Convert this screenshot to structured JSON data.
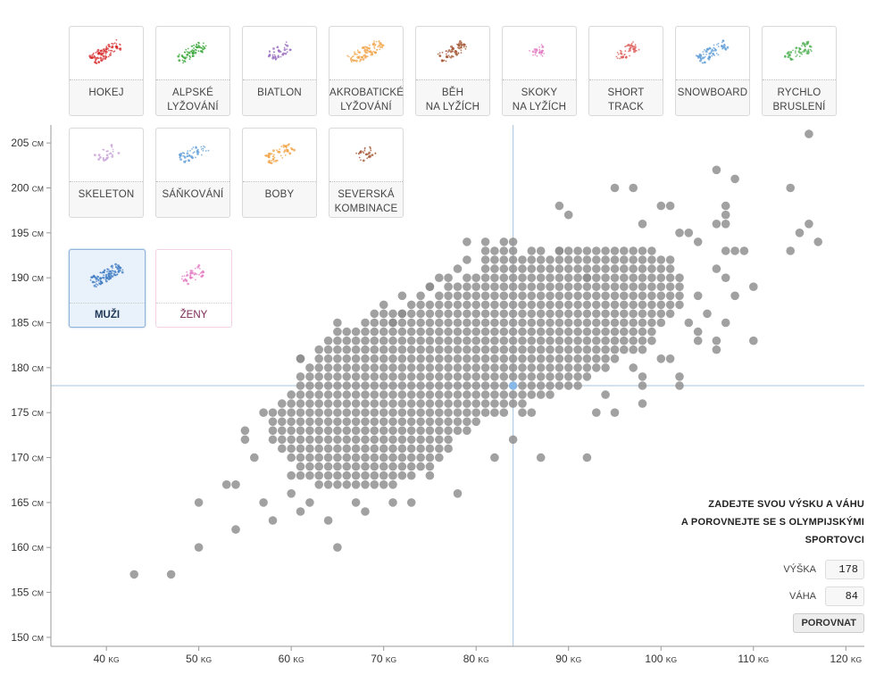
{
  "sports": [
    {
      "id": "hokej",
      "line1": "HOKEJ",
      "line2": "",
      "color": "#d62728"
    },
    {
      "id": "alpske",
      "line1": "ALPSKÉ",
      "line2": "LYŽOVÁNÍ",
      "color": "#2ca02c"
    },
    {
      "id": "biatlon",
      "line1": "BIATLON",
      "line2": "",
      "color": "#9467bd"
    },
    {
      "id": "akrobaticke",
      "line1": "AKROBATICKÉ",
      "line2": "LYŽOVÁNÍ",
      "color": "#f0a040"
    },
    {
      "id": "beh",
      "line1": "BĚH",
      "line2": "NA LYŽÍCH",
      "color": "#a0522d"
    },
    {
      "id": "skoky",
      "line1": "SKOKY",
      "line2": "NA LYŽÍCH",
      "color": "#e377c2"
    },
    {
      "id": "short",
      "line1": "SHORT",
      "line2": "TRACK",
      "color": "#d9534f"
    },
    {
      "id": "snowboard",
      "line1": "SNOWBOARD",
      "line2": "",
      "color": "#5b9bd5"
    },
    {
      "id": "rychlo",
      "line1": "RYCHLO",
      "line2": "BRUSLENÍ",
      "color": "#4caf50"
    },
    {
      "id": "skeleton",
      "line1": "SKELETON",
      "line2": "",
      "color": "#c39bd3"
    },
    {
      "id": "sankovani",
      "line1": "SÁŇKOVÁNÍ",
      "line2": "",
      "color": "#5b9bd5"
    },
    {
      "id": "boby",
      "line1": "BOBY",
      "line2": "",
      "color": "#f0a040"
    },
    {
      "id": "severska",
      "line1": "SEVERSKÁ",
      "line2": "KOMBINACE",
      "color": "#a0522d"
    }
  ],
  "genders": {
    "men": {
      "label": "MUŽI",
      "color": "#3a78c2"
    },
    "women": {
      "label": "ŽENY",
      "color": "#e377c2"
    }
  },
  "compare": {
    "line1": "ZADEJTE SVOU VÝSKU A VÁHU",
    "line2": "A POROVNEJTE SE S OLYMPIJSKÝMI",
    "line3": "SPORTOVCI",
    "height_label": "VÝŠKA",
    "height_value": "178",
    "weight_label": "VÁHA",
    "weight_value": "84",
    "button_label": "POROVNAT"
  },
  "chart_data": {
    "type": "scatter",
    "xlabel": "",
    "ylabel": "",
    "x_unit": "KG",
    "y_unit": "CM",
    "xlim": [
      34,
      122
    ],
    "ylim": [
      149,
      207
    ],
    "x_ticks": [
      40,
      50,
      60,
      70,
      80,
      90,
      100,
      110,
      120
    ],
    "y_ticks": [
      150,
      155,
      160,
      165,
      170,
      175,
      180,
      185,
      190,
      195,
      200,
      205
    ],
    "grid": false,
    "point_color": "#8c8c8c",
    "highlight_color": "#8ab8e6",
    "crosshair_color": "#a9c3de",
    "highlight": {
      "x": 84,
      "y": 178
    },
    "dense_region": {
      "rows": [
        {
          "y": 194,
          "x": [
            81,
            83,
            84
          ]
        },
        {
          "y": 193,
          "x": [
            81,
            82,
            83,
            84,
            86,
            87,
            89,
            90,
            91,
            92,
            93,
            94,
            95,
            96,
            97,
            98,
            99
          ]
        },
        {
          "y": 192,
          "x": [
            79,
            81,
            82,
            83,
            84,
            85,
            86,
            87,
            88,
            89,
            90,
            91,
            92,
            93,
            94,
            95,
            96,
            97,
            98,
            99,
            100,
            101
          ]
        },
        {
          "y": 191,
          "x": [
            78,
            81,
            82,
            83,
            84,
            85,
            86,
            87,
            88,
            89,
            90,
            91,
            92,
            93,
            94,
            95,
            96,
            97,
            98,
            99,
            100,
            101
          ]
        },
        {
          "y": 190,
          "x": [
            76,
            79,
            80,
            81,
            82,
            83,
            84,
            85,
            86,
            87,
            88,
            89,
            90,
            91,
            92,
            93,
            94,
            95,
            96,
            97,
            98,
            99,
            100,
            101,
            102
          ]
        },
        {
          "y": 189,
          "x": [
            75,
            77,
            78,
            79,
            80,
            81,
            82,
            83,
            84,
            85,
            86,
            87,
            88,
            89,
            90,
            91,
            92,
            93,
            94,
            95,
            96,
            97,
            98,
            99,
            100,
            101,
            102
          ]
        },
        {
          "y": 188,
          "x": [
            72,
            74,
            76,
            77,
            78,
            79,
            80,
            81,
            82,
            83,
            84,
            85,
            86,
            87,
            88,
            89,
            90,
            91,
            92,
            93,
            94,
            95,
            96,
            97,
            98,
            99,
            100,
            101,
            102
          ]
        },
        {
          "y": 187,
          "x": [
            70,
            73,
            74,
            75,
            76,
            77,
            78,
            79,
            80,
            81,
            82,
            83,
            84,
            85,
            86,
            87,
            88,
            89,
            90,
            91,
            92,
            93,
            94,
            95,
            96,
            97,
            98,
            99,
            100,
            101,
            102
          ]
        },
        {
          "y": 186,
          "x": [
            69,
            70,
            71,
            72,
            73,
            74,
            75,
            76,
            77,
            78,
            79,
            80,
            81,
            82,
            83,
            84,
            85,
            86,
            87,
            88,
            89,
            90,
            91,
            92,
            93,
            94,
            95,
            96,
            97,
            98,
            99,
            100,
            101
          ]
        },
        {
          "y": 185,
          "x": [
            65,
            68,
            69,
            70,
            71,
            72,
            73,
            74,
            75,
            76,
            77,
            78,
            79,
            80,
            81,
            82,
            83,
            84,
            85,
            86,
            87,
            88,
            89,
            90,
            91,
            92,
            93,
            94,
            95,
            96,
            97,
            98,
            99,
            100
          ]
        },
        {
          "y": 184,
          "x": [
            65,
            66,
            67,
            68,
            69,
            70,
            71,
            72,
            73,
            74,
            75,
            76,
            77,
            78,
            79,
            80,
            81,
            82,
            83,
            84,
            85,
            86,
            87,
            88,
            89,
            90,
            91,
            92,
            93,
            94,
            95,
            96,
            97,
            98,
            99
          ]
        },
        {
          "y": 183,
          "x": [
            64,
            65,
            66,
            67,
            68,
            69,
            70,
            71,
            72,
            73,
            74,
            75,
            76,
            77,
            78,
            79,
            80,
            81,
            82,
            83,
            84,
            85,
            86,
            87,
            88,
            89,
            90,
            91,
            92,
            93,
            94,
            95,
            96,
            97,
            98,
            99
          ]
        },
        {
          "y": 182,
          "x": [
            63,
            64,
            65,
            66,
            67,
            68,
            69,
            70,
            71,
            72,
            73,
            74,
            75,
            76,
            77,
            78,
            79,
            80,
            81,
            82,
            83,
            84,
            85,
            86,
            87,
            88,
            89,
            90,
            91,
            92,
            93,
            94,
            95,
            96,
            97,
            98
          ]
        },
        {
          "y": 181,
          "x": [
            61,
            63,
            64,
            65,
            66,
            67,
            68,
            69,
            70,
            71,
            72,
            73,
            74,
            75,
            76,
            77,
            78,
            79,
            80,
            81,
            82,
            83,
            84,
            85,
            86,
            87,
            88,
            89,
            90,
            91,
            92,
            93,
            94,
            95
          ]
        },
        {
          "y": 180,
          "x": [
            62,
            63,
            64,
            65,
            66,
            67,
            68,
            69,
            70,
            71,
            72,
            73,
            74,
            75,
            76,
            77,
            78,
            79,
            80,
            81,
            82,
            83,
            84,
            85,
            86,
            87,
            88,
            89,
            90,
            91,
            92,
            93,
            94
          ]
        },
        {
          "y": 179,
          "x": [
            61,
            62,
            63,
            64,
            65,
            66,
            67,
            68,
            69,
            70,
            71,
            72,
            73,
            74,
            75,
            76,
            77,
            78,
            79,
            80,
            81,
            82,
            83,
            84,
            85,
            86,
            87,
            88,
            89,
            90,
            91,
            92
          ]
        },
        {
          "y": 178,
          "x": [
            61,
            62,
            63,
            64,
            65,
            66,
            67,
            68,
            69,
            70,
            71,
            72,
            73,
            74,
            75,
            76,
            77,
            78,
            79,
            80,
            81,
            82,
            83,
            85,
            86,
            87,
            88,
            89,
            90,
            91
          ]
        },
        {
          "y": 177,
          "x": [
            60,
            61,
            62,
            63,
            64,
            65,
            66,
            67,
            68,
            69,
            70,
            71,
            72,
            73,
            74,
            75,
            76,
            77,
            78,
            79,
            80,
            81,
            82,
            83,
            84,
            85,
            86,
            87,
            88
          ]
        },
        {
          "y": 176,
          "x": [
            59,
            60,
            61,
            62,
            63,
            64,
            65,
            66,
            67,
            68,
            69,
            70,
            71,
            72,
            73,
            74,
            75,
            76,
            77,
            78,
            79,
            80,
            81,
            82,
            83,
            84,
            85
          ]
        },
        {
          "y": 175,
          "x": [
            57,
            58,
            59,
            60,
            61,
            62,
            63,
            64,
            65,
            66,
            67,
            68,
            69,
            70,
            71,
            72,
            73,
            74,
            75,
            76,
            77,
            78,
            79,
            80,
            81,
            82,
            83
          ]
        },
        {
          "y": 174,
          "x": [
            58,
            59,
            60,
            61,
            62,
            63,
            64,
            65,
            66,
            67,
            68,
            69,
            70,
            71,
            72,
            73,
            74,
            75,
            76,
            77,
            78,
            79,
            80
          ]
        },
        {
          "y": 173,
          "x": [
            58,
            59,
            60,
            61,
            62,
            63,
            64,
            65,
            66,
            67,
            68,
            69,
            70,
            71,
            72,
            73,
            74,
            75,
            76,
            77,
            78,
            79
          ]
        },
        {
          "y": 172,
          "x": [
            58,
            59,
            60,
            61,
            62,
            63,
            64,
            65,
            66,
            67,
            68,
            69,
            70,
            71,
            72,
            73,
            74,
            75,
            76,
            77
          ]
        },
        {
          "y": 171,
          "x": [
            59,
            60,
            61,
            62,
            63,
            64,
            65,
            66,
            67,
            68,
            69,
            70,
            71,
            72,
            73,
            74,
            75,
            76,
            77
          ]
        },
        {
          "y": 170,
          "x": [
            60,
            61,
            62,
            63,
            64,
            65,
            66,
            67,
            68,
            69,
            70,
            71,
            72,
            73,
            74,
            75,
            76
          ]
        },
        {
          "y": 169,
          "x": [
            61,
            62,
            63,
            64,
            65,
            66,
            67,
            68,
            69,
            70,
            71,
            72,
            73,
            74,
            75
          ]
        },
        {
          "y": 168,
          "x": [
            60,
            61,
            62,
            63,
            64,
            65,
            66,
            67,
            68,
            69,
            70,
            71,
            72,
            73
          ]
        },
        {
          "y": 167,
          "x": [
            63,
            64,
            65,
            66,
            67,
            68,
            69,
            70,
            71
          ]
        }
      ]
    },
    "scattered_points": [
      [
        43,
        157
      ],
      [
        47,
        157
      ],
      [
        50,
        165
      ],
      [
        50,
        160
      ],
      [
        53,
        167
      ],
      [
        54,
        167
      ],
      [
        54,
        162
      ],
      [
        55,
        173
      ],
      [
        55,
        172
      ],
      [
        56,
        170
      ],
      [
        57,
        165
      ],
      [
        58,
        163
      ],
      [
        60,
        166
      ],
      [
        61,
        164
      ],
      [
        62,
        165
      ],
      [
        64,
        163
      ],
      [
        65,
        160
      ],
      [
        67,
        165
      ],
      [
        68,
        164
      ],
      [
        71,
        165
      ],
      [
        73,
        165
      ],
      [
        75,
        168
      ],
      [
        78,
        166
      ],
      [
        82,
        170
      ],
      [
        84,
        172
      ],
      [
        87,
        170
      ],
      [
        92,
        170
      ],
      [
        86,
        175
      ],
      [
        85,
        175
      ],
      [
        93,
        175
      ],
      [
        95,
        175
      ],
      [
        94,
        177
      ],
      [
        98,
        176
      ],
      [
        97,
        180
      ],
      [
        98,
        179
      ],
      [
        98,
        178
      ],
      [
        100,
        181
      ],
      [
        101,
        181
      ],
      [
        102,
        178
      ],
      [
        102,
        179
      ],
      [
        103,
        185
      ],
      [
        104,
        184
      ],
      [
        104,
        183
      ],
      [
        105,
        186
      ],
      [
        106,
        183
      ],
      [
        106,
        182
      ],
      [
        107,
        185
      ],
      [
        107,
        190
      ],
      [
        108,
        188
      ],
      [
        106,
        191
      ],
      [
        107,
        193
      ],
      [
        108,
        193
      ],
      [
        109,
        193
      ],
      [
        110,
        189
      ],
      [
        110,
        183
      ],
      [
        104,
        188
      ],
      [
        104,
        194
      ],
      [
        103,
        195
      ],
      [
        102,
        195
      ],
      [
        106,
        196
      ],
      [
        107,
        196
      ],
      [
        108,
        201
      ],
      [
        106,
        202
      ],
      [
        107,
        198
      ],
      [
        107,
        197
      ],
      [
        100,
        198
      ],
      [
        101,
        198
      ],
      [
        97,
        200
      ],
      [
        95,
        200
      ],
      [
        89,
        198
      ],
      [
        90,
        197
      ],
      [
        98,
        196
      ],
      [
        92,
        190
      ],
      [
        89,
        193
      ],
      [
        79,
        194
      ],
      [
        77,
        190
      ],
      [
        75,
        189
      ],
      [
        72,
        186
      ],
      [
        71,
        185
      ],
      [
        61,
        181
      ],
      [
        116,
        206
      ],
      [
        114,
        200
      ],
      [
        116,
        196
      ],
      [
        115,
        195
      ],
      [
        114,
        193
      ],
      [
        117,
        194
      ]
    ]
  }
}
